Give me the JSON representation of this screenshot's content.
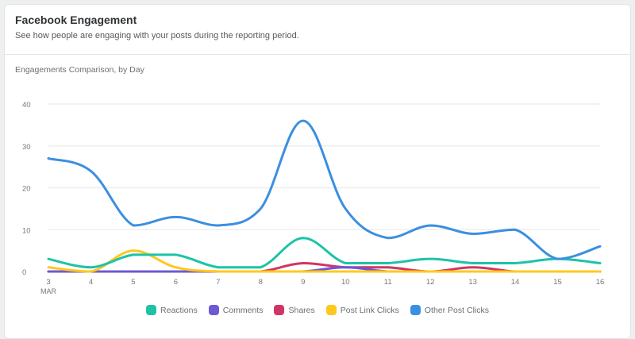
{
  "card": {
    "title": "Facebook Engagement",
    "subtitle": "See how people are engaging with your posts during the reporting period.",
    "chart_label": "Engagements Comparison, by Day"
  },
  "chart_data": {
    "type": "line",
    "title": "Engagements Comparison, by Day",
    "xlabel": "MAR",
    "ylabel": "",
    "x": [
      "3",
      "4",
      "5",
      "6",
      "7",
      "8",
      "9",
      "10",
      "11",
      "12",
      "13",
      "14",
      "15",
      "16"
    ],
    "x_month_label": "MAR",
    "yticks": [
      0,
      10,
      20,
      30,
      40
    ],
    "ylim": [
      0,
      40
    ],
    "grid": true,
    "legend_position": "bottom",
    "series": [
      {
        "name": "Reactions",
        "color": "#1ec3a6",
        "values": [
          3,
          1,
          4,
          4,
          1,
          1,
          8,
          2,
          2,
          3,
          2,
          2,
          3,
          2
        ]
      },
      {
        "name": "Comments",
        "color": "#6e58d6",
        "values": [
          0,
          0,
          0,
          0,
          0,
          0,
          0,
          1,
          0,
          0,
          0,
          0,
          0,
          0
        ]
      },
      {
        "name": "Shares",
        "color": "#d23565",
        "values": [
          0,
          0,
          0,
          0,
          0,
          0,
          2,
          1,
          1,
          0,
          1,
          0,
          0,
          0
        ]
      },
      {
        "name": "Post Link Clicks",
        "color": "#ffc81e",
        "values": [
          1,
          0,
          5,
          1,
          0,
          0,
          0,
          0,
          0,
          0,
          0,
          0,
          0,
          0
        ]
      },
      {
        "name": "Other Post Clicks",
        "color": "#3b8fe0",
        "values": [
          27,
          24,
          11,
          13,
          11,
          15,
          36,
          15,
          8,
          11,
          9,
          10,
          3,
          6
        ]
      }
    ]
  },
  "legend": {
    "items": [
      {
        "label": "Reactions",
        "color": "#1ec3a6"
      },
      {
        "label": "Comments",
        "color": "#6e58d6"
      },
      {
        "label": "Shares",
        "color": "#d23565"
      },
      {
        "label": "Post Link Clicks",
        "color": "#ffc81e"
      },
      {
        "label": "Other Post Clicks",
        "color": "#3b8fe0"
      }
    ]
  }
}
